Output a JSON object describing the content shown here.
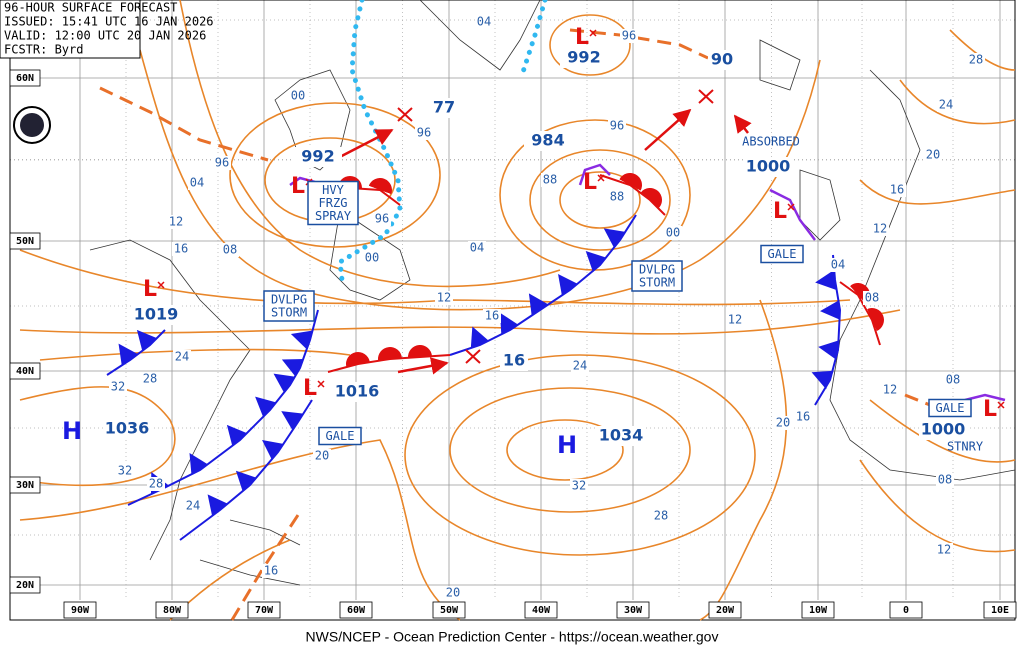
{
  "header": {
    "lines": [
      "96-HOUR SURFACE FORECAST",
      "ISSUED: 15:41 UTC 16 JAN 2026",
      "VALID:  12:00 UTC 20 JAN 2026",
      "FCSTR:  Byrd"
    ]
  },
  "lat_labels": [
    "60N",
    "50N",
    "40N",
    "30N",
    "20N"
  ],
  "lon_labels": [
    "90W",
    "80W",
    "70W",
    "60W",
    "50W",
    "40W",
    "30W",
    "20W",
    "10W",
    "0",
    "10E"
  ],
  "pressure_centers": [
    {
      "symbol": "L",
      "value": "992"
    },
    {
      "symbol": "L",
      "value": "984"
    },
    {
      "symbol": "L",
      "value": "992"
    },
    {
      "symbol": "L",
      "value": "1000"
    },
    {
      "symbol": "L",
      "value": "1019"
    },
    {
      "symbol": "L",
      "value": "1016"
    },
    {
      "symbol": "L",
      "value": "1000"
    },
    {
      "symbol": "H",
      "value": "1036"
    },
    {
      "symbol": "H",
      "value": "1034"
    }
  ],
  "forecast_positions": [
    "77",
    "90",
    "16"
  ],
  "boxes": [
    [
      "HVY",
      "FRZG",
      "SPRAY"
    ],
    [
      "DVLPG",
      "STORM"
    ],
    [
      "DVLPG",
      "STORM"
    ],
    [
      "GALE"
    ],
    [
      "GALE"
    ],
    [
      "GALE"
    ]
  ],
  "annotations": [
    "ABSORBED",
    "STNRY"
  ],
  "isobar_labels": [
    "04",
    "96",
    "00",
    "96",
    "96",
    "04",
    "12",
    "16",
    "08",
    "96",
    "00",
    "04",
    "12",
    "16",
    "24",
    "28",
    "24",
    "32",
    "32",
    "28",
    "24",
    "20",
    "16",
    "20",
    "32",
    "28",
    "96",
    "88",
    "88",
    "00",
    "12",
    "20",
    "16",
    "04",
    "08",
    "12",
    "16",
    "20",
    "24",
    "28",
    "12",
    "08",
    "08",
    "12"
  ],
  "footer": "NWS/NCEP - Ocean Prediction Center - https://ocean.weather.gov"
}
